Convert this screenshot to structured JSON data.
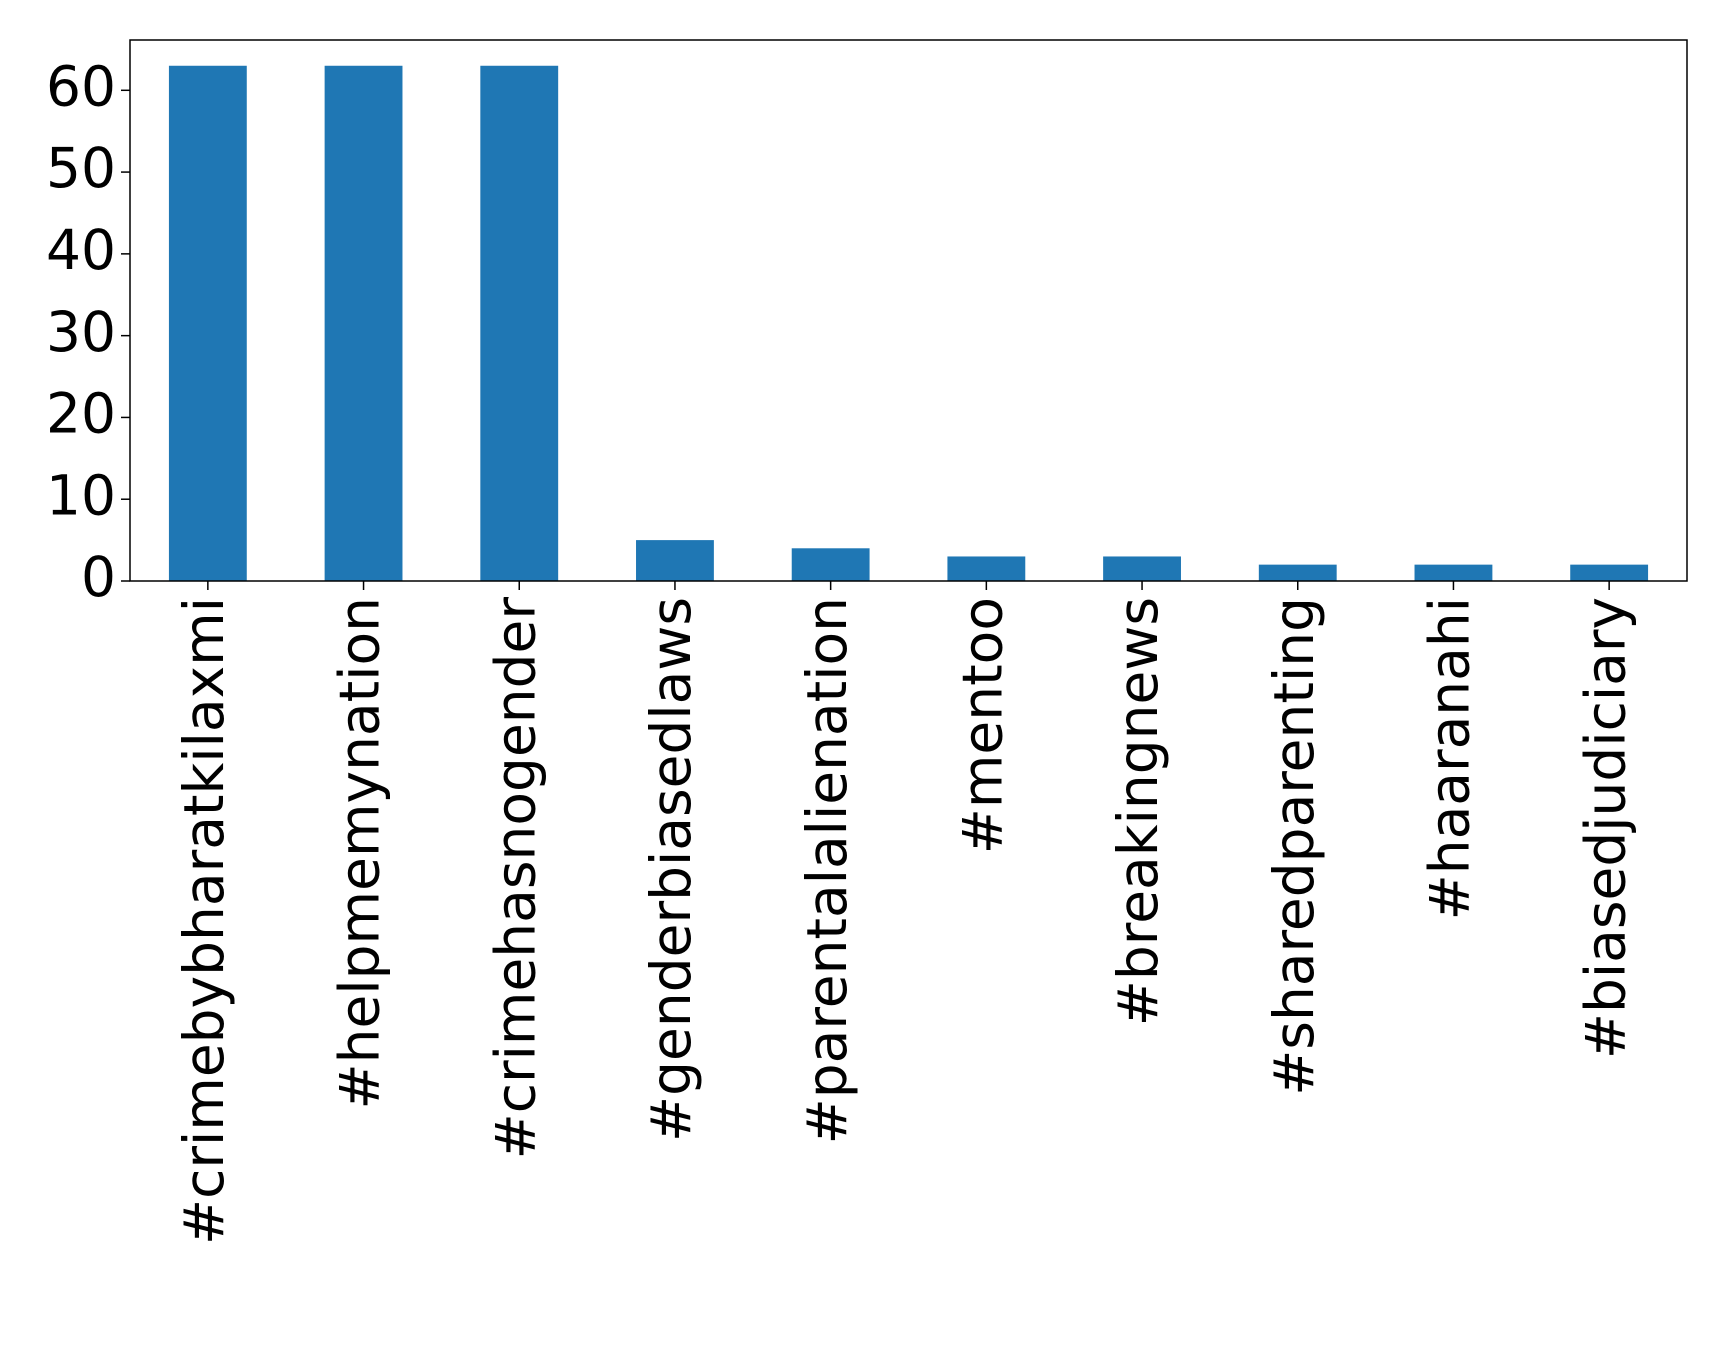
{
  "chart_data": {
    "type": "bar",
    "categories": [
      "#crimebybharatkilaxmi",
      "#helpmemynation",
      "#crimehasnogender",
      "#genderbiasedlaws",
      "#parentalalienation",
      "#mentoo",
      "#breakingnews",
      "#sharedparenting",
      "#haaranahi",
      "#biasedjudiciary"
    ],
    "values": [
      63,
      63,
      63,
      5,
      4,
      3,
      3,
      2,
      2,
      2
    ],
    "color": "#1f77b4",
    "ylim": [
      0,
      66.15
    ],
    "yticks": [
      0,
      10,
      20,
      30,
      40,
      50,
      60
    ]
  }
}
